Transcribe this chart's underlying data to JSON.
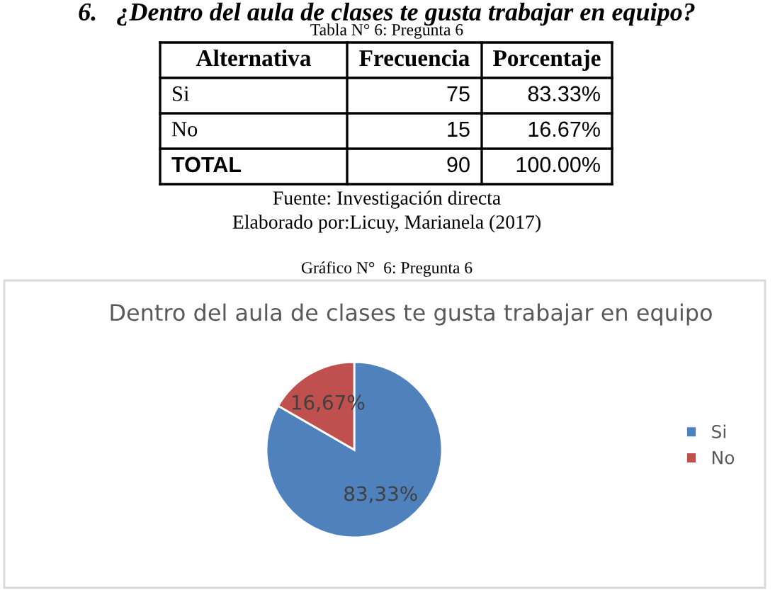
{
  "chart_data": [
    {
      "type": "other",
      "title": "6.   ¿Dentro del aula de clases te gusta trabajar en equipo?",
      "annotations": [
        "Tabla N° 6: Pregunta 6",
        "Alternativa",
        "Frecuencia",
        "Porcentaje",
        "Si",
        "75",
        "83.33%",
        "No",
        "15",
        "16.67%",
        "TOTAL",
        "90",
        "100.00%",
        "Fuente: Investigación directa",
        "Elaborado por:Licuy, Marianela (2017)",
        "Gráfico N°  6: Pregunta 6"
      ]
    },
    {
      "type": "pie",
      "title": "Dentro del aula de clases te gusta trabajar en equipo",
      "categories": [
        "Si",
        "No"
      ],
      "values": [
        83.33,
        16.67
      ],
      "colors": [
        "#4f81bd",
        "#c0504d"
      ],
      "value_labels": [
        "83,33%",
        "16,67%"
      ],
      "legend": "right"
    }
  ]
}
